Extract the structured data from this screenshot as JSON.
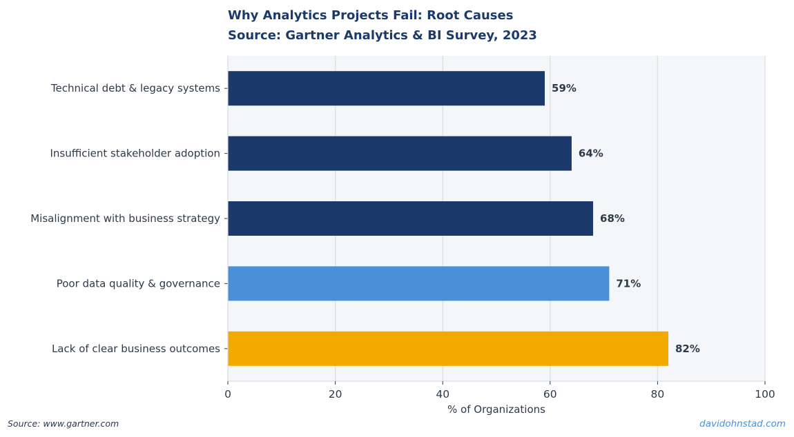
{
  "chart_data": {
    "type": "bar",
    "orientation": "horizontal",
    "title": "Why Analytics Projects Fail: Root Causes",
    "subtitle": "Source: Gartner Analytics & BI Survey, 2023",
    "xlabel": "% of Organizations",
    "ylabel": "",
    "xlim": [
      0,
      100
    ],
    "xticks": [
      0,
      20,
      40,
      60,
      80,
      100
    ],
    "grid": true,
    "categories": [
      "Technical debt & legacy systems",
      "Insufficient stakeholder adoption",
      "Misalignment with business strategy",
      "Poor data quality & governance",
      "Lack of clear business outcomes"
    ],
    "values": [
      59,
      64,
      68,
      71,
      82
    ],
    "value_labels": [
      "59%",
      "64%",
      "68%",
      "71%",
      "82%"
    ],
    "bar_colors": [
      "#1b3a6b",
      "#1b3a6b",
      "#1b3a6b",
      "#4a90d9",
      "#f2a900"
    ]
  },
  "footer": {
    "source": "Source: www.gartner.com",
    "credit": "davidohnstad.com"
  },
  "colors": {
    "plot_background": "#f4f6fa",
    "grid": "#d9dde4",
    "text": "#2d3a4a",
    "title": "#1b3a6b"
  }
}
